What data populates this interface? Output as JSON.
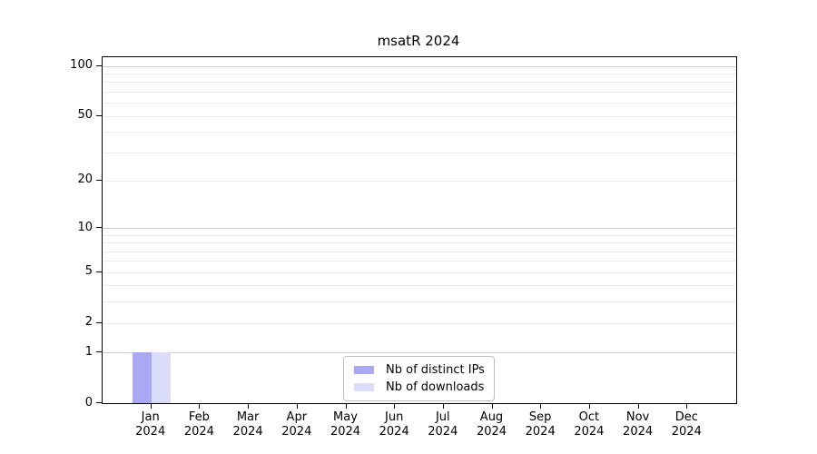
{
  "chart_data": {
    "type": "bar",
    "title": "msatR 2024",
    "scale": "log1p",
    "categories": [
      "Jan",
      "Feb",
      "Mar",
      "Apr",
      "May",
      "Jun",
      "Jul",
      "Aug",
      "Sep",
      "Oct",
      "Nov",
      "Dec"
    ],
    "category_year": "2024",
    "series": [
      {
        "name": "Nb of distinct IPs",
        "color": "#a9a9f3",
        "values": [
          1,
          0,
          0,
          0,
          0,
          0,
          0,
          0,
          0,
          0,
          0,
          0
        ]
      },
      {
        "name": "Nb of downloads",
        "color": "#dadcf8",
        "values": [
          1,
          0,
          0,
          0,
          0,
          0,
          0,
          0,
          0,
          0,
          0,
          0
        ]
      }
    ],
    "xlabel": "",
    "ylabel": "",
    "ylim": [
      0,
      112
    ],
    "yticks": [
      0,
      1,
      2,
      5,
      10,
      20,
      50,
      100
    ],
    "gridlines": {
      "major": [
        1,
        10,
        100
      ],
      "minor": [
        2,
        3,
        4,
        5,
        6,
        7,
        8,
        9,
        20,
        30,
        40,
        50,
        60,
        70,
        80,
        90
      ]
    },
    "grid": true,
    "legend_position": "bottom-center"
  },
  "colors": {
    "major_grid": "#cccccc",
    "minor_grid": "#ececec",
    "axis": "#000000",
    "legend_border": "#bdbdbd",
    "background": "#ffffff"
  }
}
